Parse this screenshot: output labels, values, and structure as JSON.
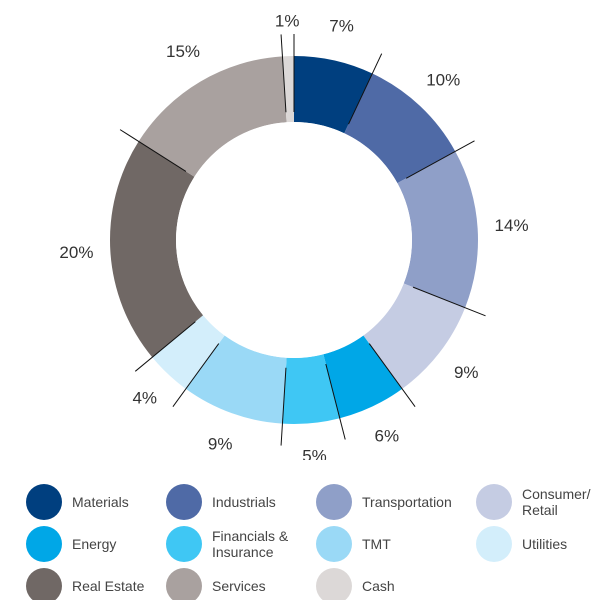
{
  "chart_data": {
    "type": "donut",
    "categories": [
      "Materials",
      "Industrials",
      "Transportation",
      "Consumer/ Retail",
      "Energy",
      "Financials & Insurance",
      "TMT",
      "Utilities",
      "Real Estate",
      "Services",
      "Cash"
    ],
    "values": [
      7,
      10,
      14,
      9,
      6,
      5,
      9,
      4,
      20,
      15,
      1
    ],
    "value_labels": [
      "7%",
      "10%",
      "14%",
      "9%",
      "6%",
      "5%",
      "9%",
      "4%",
      "20%",
      "15%",
      "1%"
    ],
    "colors": [
      "#003f7f",
      "#4f6aa6",
      "#8f9fc8",
      "#c5cce3",
      "#00a7e7",
      "#3fc7f4",
      "#9ad9f6",
      "#d3eefb",
      "#706865",
      "#a9a19f",
      "#dcd8d7"
    ]
  }
}
